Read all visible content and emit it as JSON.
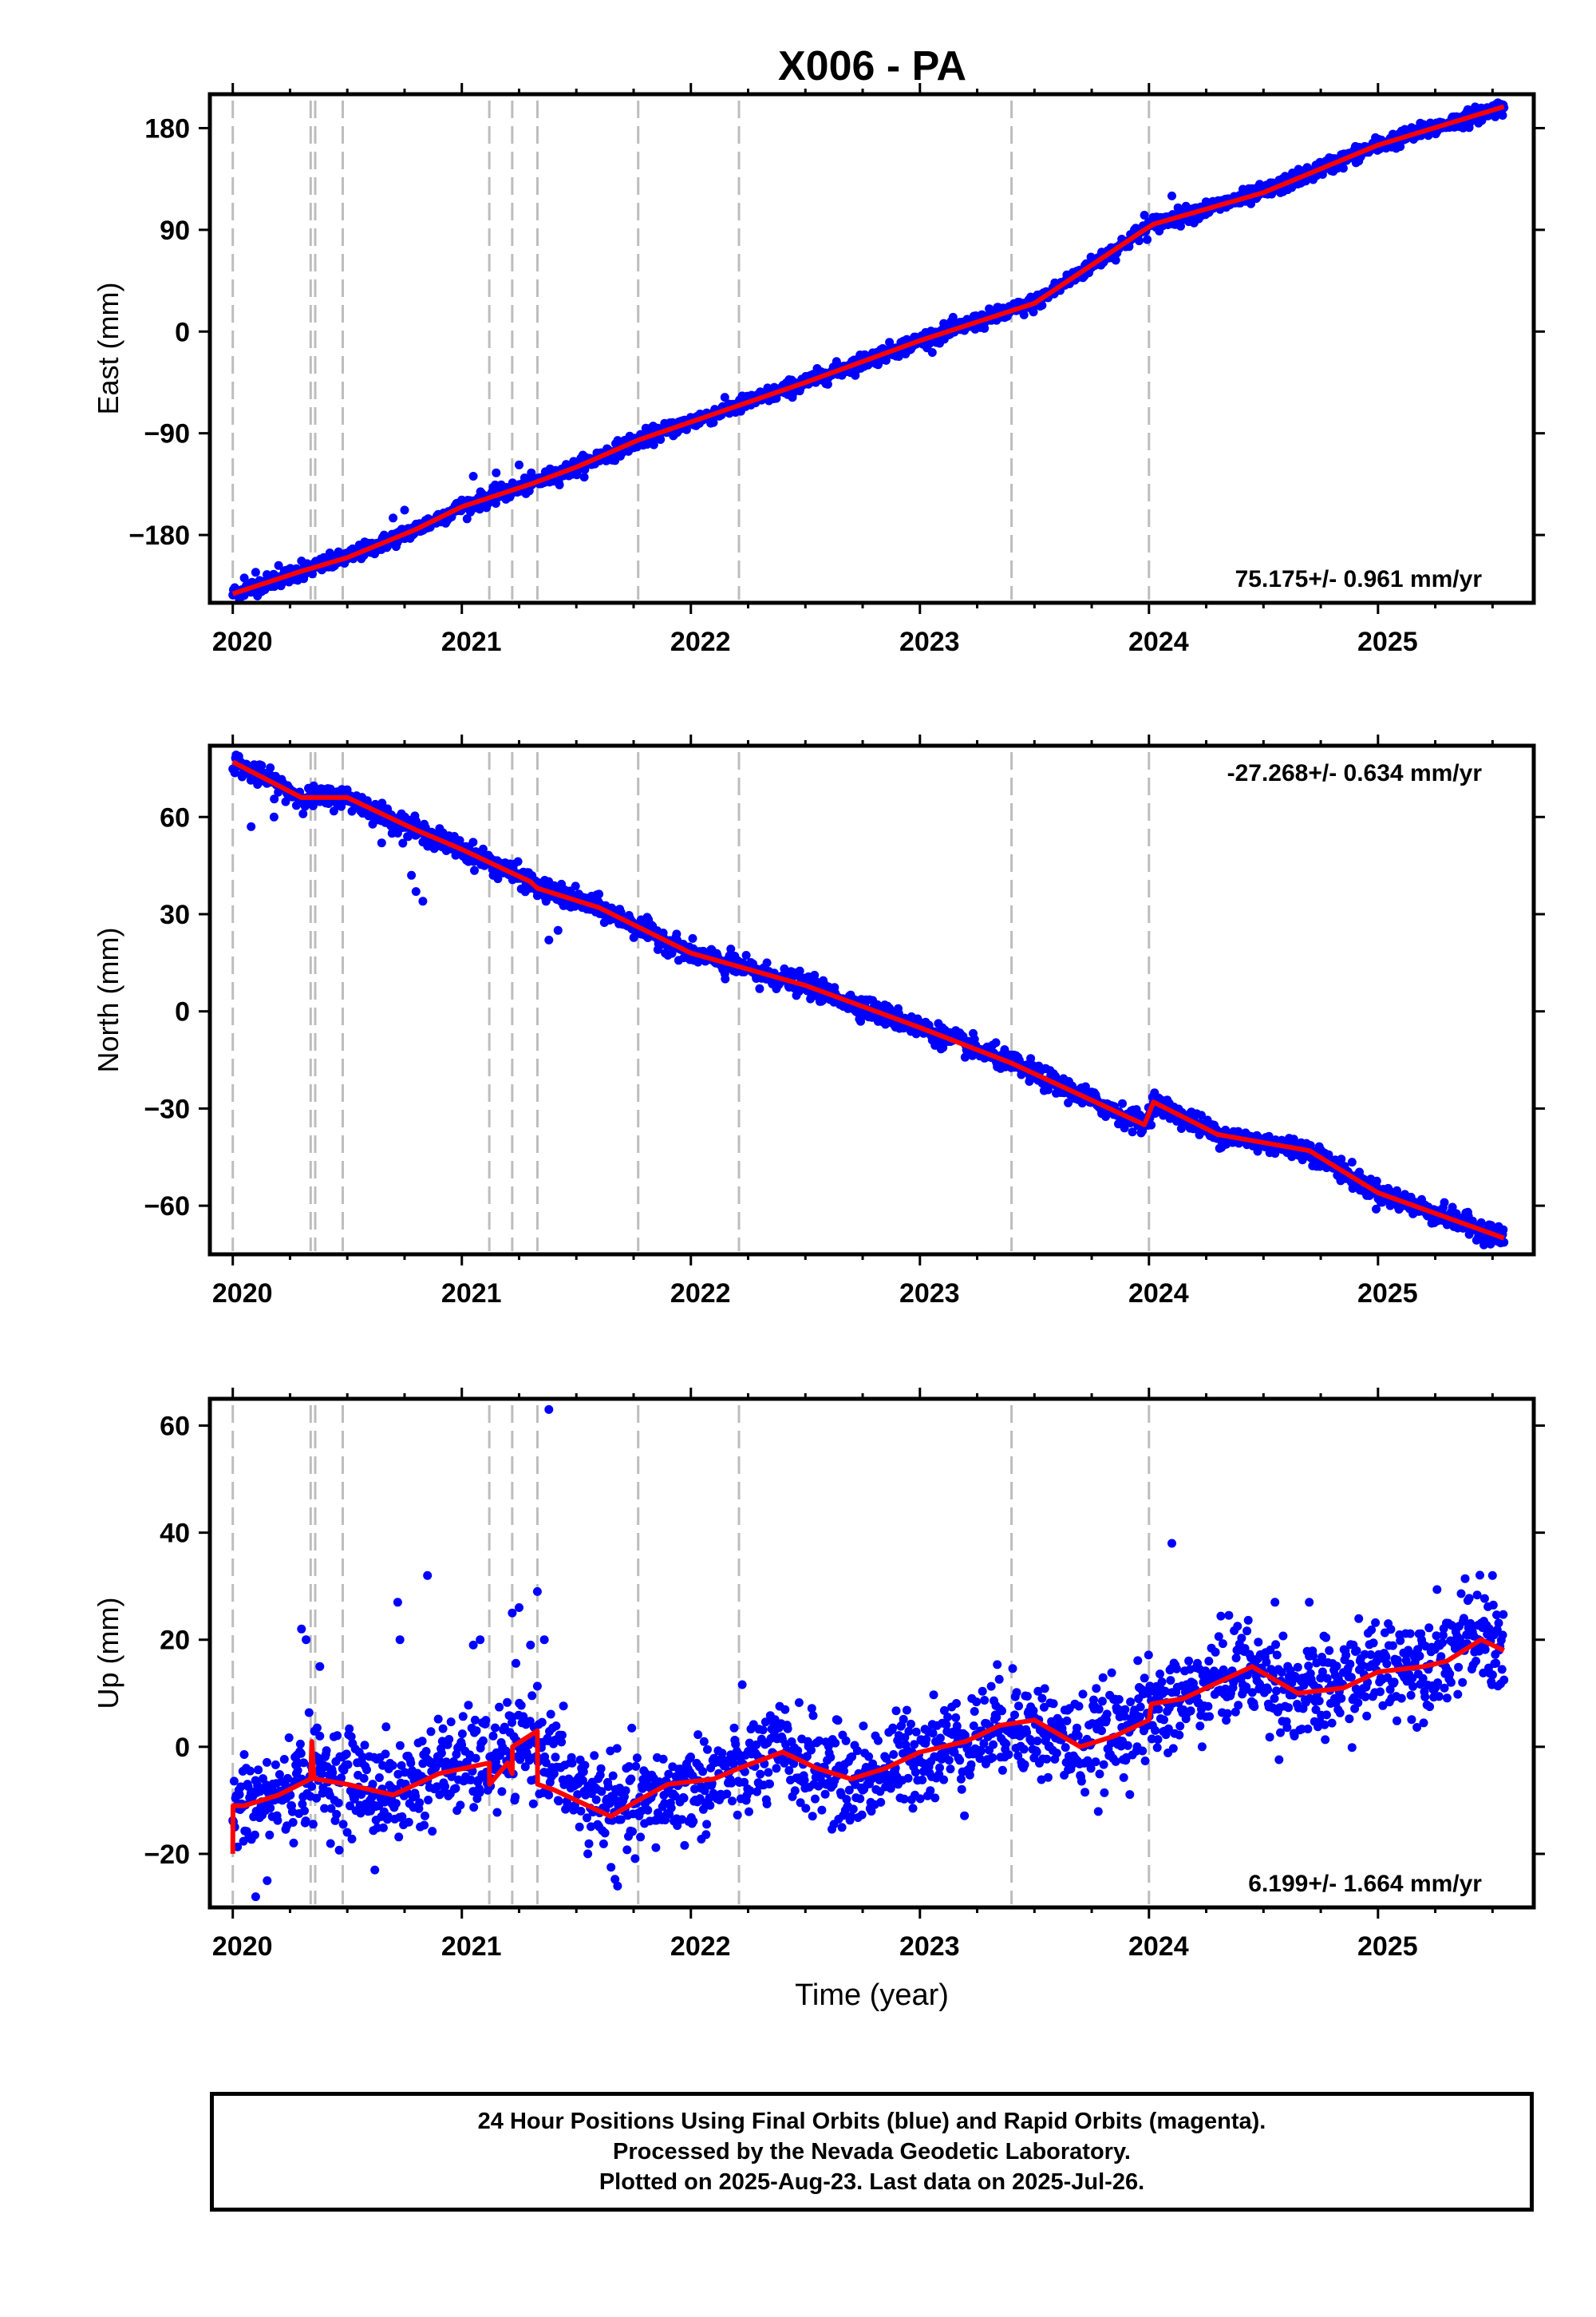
{
  "title": "X006 - PA",
  "chart_data": [
    {
      "type": "scatter",
      "ylabel": "East (mm)",
      "xlabel": "",
      "xlim": [
        2019.9,
        2025.68
      ],
      "ylim": [
        -240,
        210
      ],
      "yticks": [
        -180,
        -90,
        0,
        90,
        180
      ],
      "ytick_labels": [
        "−180",
        "−90",
        "0",
        "90",
        "180"
      ],
      "xticks": [
        2020,
        2021,
        2022,
        2023,
        2024,
        2025
      ],
      "xtick_labels": [
        "2020",
        "2021",
        "2022",
        "2023",
        "2024",
        "2025"
      ],
      "rate_label": "75.175+/- 0.961 mm/yr",
      "rate_position": "bottom-right",
      "events": [
        2020.0,
        2020.34,
        2020.36,
        2020.48,
        2021.12,
        2021.22,
        2021.33,
        2021.77,
        2022.21,
        2023.4,
        2024.0
      ],
      "series": [
        {
          "style": "points",
          "color": "#0000ff",
          "noise": 3.5,
          "n": 1900,
          "x": [
            2020.0,
            2020.3,
            2020.5,
            2020.8,
            2021.0,
            2021.3,
            2021.5,
            2021.77,
            2022.0,
            2022.5,
            2023.0,
            2023.5,
            2023.98,
            2024.02,
            2024.5,
            2025.0,
            2025.55
          ],
          "y": [
            -232,
            -212,
            -200,
            -175,
            -155,
            -135,
            -120,
            -96,
            -80,
            -45,
            -8,
            25,
            90,
            95,
            123,
            165,
            199
          ]
        },
        {
          "style": "line",
          "color": "#ff0000",
          "x": [
            2020.0,
            2020.3,
            2020.5,
            2020.8,
            2021.0,
            2021.3,
            2021.5,
            2021.77,
            2022.0,
            2022.5,
            2023.0,
            2023.5,
            2023.98,
            2024.02,
            2024.5,
            2025.0,
            2025.55
          ],
          "y": [
            -232,
            -212,
            -200,
            -175,
            -155,
            -135,
            -120,
            -96,
            -80,
            -45,
            -8,
            25,
            90,
            95,
            123,
            165,
            199
          ]
        }
      ],
      "outliers": {
        "x": [
          2020.05,
          2020.1,
          2020.2,
          2020.3,
          2020.7,
          2020.75,
          2021.05,
          2021.15,
          2021.25,
          2023.98,
          2024.1
        ],
        "y": [
          -218,
          -213,
          -207,
          -203,
          -165,
          -158,
          -128,
          -125,
          -118,
          103,
          120
        ]
      }
    },
    {
      "type": "scatter",
      "ylabel": "North (mm)",
      "xlabel": "",
      "xlim": [
        2019.9,
        2025.68
      ],
      "ylim": [
        -75,
        82
      ],
      "yticks": [
        -60,
        -30,
        0,
        30,
        60
      ],
      "ytick_labels": [
        "−60",
        "−30",
        "0",
        "30",
        "60"
      ],
      "xticks": [
        2020,
        2021,
        2022,
        2023,
        2024,
        2025
      ],
      "xtick_labels": [
        "2020",
        "2021",
        "2022",
        "2023",
        "2024",
        "2025"
      ],
      "rate_label": "-27.268+/- 0.634 mm/yr",
      "rate_position": "top-right",
      "events": [
        2020.0,
        2020.34,
        2020.36,
        2020.48,
        2021.12,
        2021.22,
        2021.33,
        2021.77,
        2022.21,
        2023.4,
        2024.0
      ],
      "series": [
        {
          "style": "points",
          "color": "#0000ff",
          "noise": 1.6,
          "n": 1900,
          "x": [
            2020.0,
            2020.3,
            2020.5,
            2020.8,
            2021.0,
            2021.3,
            2021.33,
            2021.6,
            2022.0,
            2022.5,
            2023.0,
            2023.4,
            2023.98,
            2024.02,
            2024.3,
            2024.7,
            2025.0,
            2025.55
          ],
          "y": [
            77,
            66,
            66,
            56,
            50,
            40,
            38,
            32,
            18,
            8,
            -5,
            -16,
            -35,
            -28,
            -38,
            -43,
            -56,
            -70
          ]
        },
        {
          "style": "line",
          "color": "#ff0000",
          "x": [
            2020.0,
            2020.3,
            2020.5,
            2020.8,
            2021.0,
            2021.3,
            2021.33,
            2021.6,
            2022.0,
            2022.5,
            2023.0,
            2023.4,
            2023.98,
            2024.02,
            2024.3,
            2024.7,
            2025.0,
            2025.55
          ],
          "y": [
            77,
            66,
            66,
            56,
            50,
            40,
            38,
            32,
            18,
            8,
            -5,
            -16,
            -35,
            -28,
            -38,
            -43,
            -56,
            -70
          ]
        }
      ],
      "outliers": {
        "x": [
          2020.08,
          2020.18,
          2020.65,
          2020.72,
          2020.78,
          2020.8,
          2020.83,
          2021.38,
          2021.42,
          2022.15,
          2022.3
        ],
        "y": [
          57,
          60,
          52,
          55,
          42,
          37,
          34,
          22,
          25,
          10,
          7
        ]
      }
    },
    {
      "type": "scatter",
      "ylabel": "Up (mm)",
      "xlabel": "Time (year)",
      "xlim": [
        2019.9,
        2025.68
      ],
      "ylim": [
        -30,
        65
      ],
      "yticks": [
        -20,
        0,
        20,
        40,
        60
      ],
      "ytick_labels": [
        "−20",
        "0",
        "20",
        "40",
        "60"
      ],
      "xticks": [
        2020,
        2021,
        2022,
        2023,
        2024,
        2025
      ],
      "xtick_labels": [
        "2020",
        "2021",
        "2022",
        "2023",
        "2024",
        "2025"
      ],
      "rate_label": "6.199+/- 1.664 mm/yr",
      "rate_position": "bottom-right",
      "events": [
        2020.0,
        2020.34,
        2020.36,
        2020.48,
        2021.12,
        2021.22,
        2021.33,
        2021.77,
        2022.21,
        2023.4,
        2024.0
      ],
      "series": [
        {
          "style": "points",
          "color": "#0000ff",
          "noise": 4.5,
          "n": 1900,
          "x": [
            2020.0,
            2020.2,
            2020.35,
            2020.5,
            2020.7,
            2020.9,
            2021.12,
            2021.2,
            2021.33,
            2021.5,
            2021.7,
            2021.9,
            2022.2,
            2022.4,
            2022.7,
            2023.0,
            2023.2,
            2023.4,
            2023.7,
            2024.0,
            2024.2,
            2024.4,
            2024.7,
            2025.0,
            2025.2,
            2025.45,
            2025.55
          ],
          "y": [
            -12,
            -9,
            -5,
            -6,
            -9,
            -4,
            -3,
            -1,
            1,
            -8,
            -12,
            -9,
            -5,
            -1,
            -7,
            -1,
            1,
            5,
            0,
            6,
            10,
            15,
            9,
            15,
            16,
            21,
            18
          ]
        },
        {
          "style": "line",
          "color": "#ff0000",
          "x": [
            2020.0,
            2020.001,
            2020.05,
            2020.2,
            2020.34,
            2020.345,
            2020.355,
            2020.36,
            2020.5,
            2020.7,
            2020.9,
            2021.12,
            2021.121,
            2021.2,
            2021.22,
            2021.221,
            2021.33,
            2021.331,
            2021.4,
            2021.5,
            2021.65,
            2021.77,
            2021.9,
            2022.1,
            2022.21,
            2022.4,
            2022.55,
            2022.7,
            2022.85,
            2023.0,
            2023.2,
            2023.35,
            2023.5,
            2023.7,
            2023.85,
            2024.0,
            2024.01,
            2024.15,
            2024.35,
            2024.45,
            2024.65,
            2024.85,
            2025.0,
            2025.2,
            2025.3,
            2025.45,
            2025.55
          ],
          "y": [
            -20,
            -11,
            -11,
            -9,
            -6,
            1,
            -6,
            -6,
            -7,
            -9,
            -5,
            -3,
            -7,
            -3,
            -5,
            0,
            3,
            -7,
            -8,
            -10,
            -13,
            -10,
            -7,
            -6,
            -4,
            -1,
            -4,
            -6,
            -4,
            -1,
            1,
            4,
            5,
            0,
            2,
            5,
            8,
            9,
            13,
            15,
            10,
            11,
            14,
            15,
            16,
            20,
            18
          ]
        }
      ],
      "outliers": {
        "x": [
          2020.1,
          2020.3,
          2020.32,
          2020.38,
          2020.72,
          2020.73,
          2020.85,
          2021.05,
          2021.08,
          2021.22,
          2021.25,
          2021.3,
          2021.33,
          2021.36,
          2021.38,
          2021.55,
          2021.68,
          2020.62,
          2020.15,
          2024.1,
          2024.55,
          2024.7,
          2025.5
        ],
        "y": [
          -28,
          22,
          20,
          15,
          27,
          20,
          32,
          19,
          20,
          25,
          26,
          19,
          29,
          20,
          63,
          -20,
          -26,
          -23,
          -25,
          38,
          27,
          27,
          32
        ]
      }
    }
  ],
  "footer": {
    "line1": "24 Hour Positions Using Final Orbits (blue) and Rapid Orbits (magenta).",
    "line2": "Processed by the Nevada Geodetic Laboratory.",
    "line3": "Plotted on 2025-Aug-23. Last data on 2025-Jul-26."
  }
}
